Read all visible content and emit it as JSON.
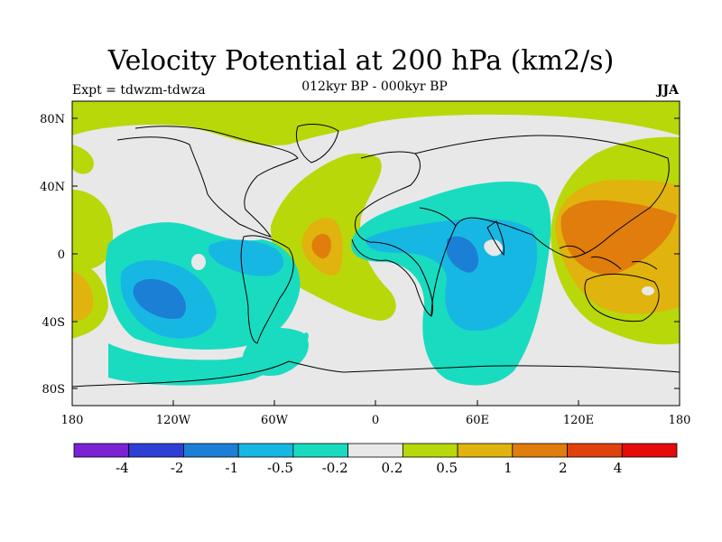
{
  "title": "Velocity Potential at 200 hPa (km2/s)",
  "subtitle": "012kyr BP - 000kyr BP",
  "experiment": "Expt = tdwzm-tdwza",
  "season": "JJA",
  "axes": {
    "x_ticks": [
      "180",
      "120W",
      "60W",
      "0",
      "60E",
      "120E",
      "180"
    ],
    "y_ticks": [
      "80N",
      "40N",
      "0",
      "40S",
      "80S"
    ]
  },
  "colorbar": {
    "colors": [
      "#7a22d4",
      "#2e3fd6",
      "#1c7fd6",
      "#17b7e3",
      "#19dbc0",
      "#e8e8e8",
      "#b8d80a",
      "#e0b30e",
      "#e07d0c",
      "#e0420c",
      "#e60a0a"
    ],
    "labels": [
      "-4",
      "-2",
      "-1",
      "-0.5",
      "-0.2",
      "0.2",
      "0.5",
      "1",
      "2",
      "4"
    ]
  }
}
